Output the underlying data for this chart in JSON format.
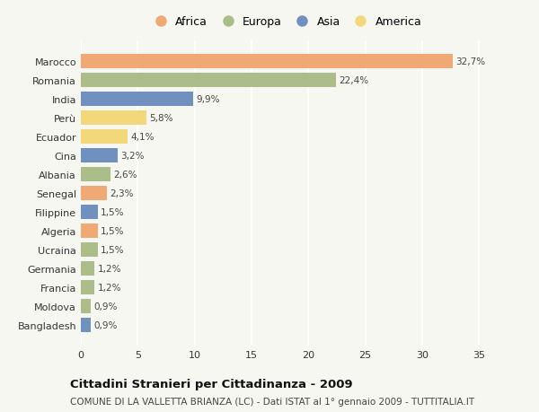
{
  "countries": [
    "Marocco",
    "Romania",
    "India",
    "Perù",
    "Ecuador",
    "Cina",
    "Albania",
    "Senegal",
    "Filippine",
    "Algeria",
    "Ucraina",
    "Germania",
    "Francia",
    "Moldova",
    "Bangladesh"
  ],
  "values": [
    32.7,
    22.4,
    9.9,
    5.8,
    4.1,
    3.2,
    2.6,
    2.3,
    1.5,
    1.5,
    1.5,
    1.2,
    1.2,
    0.9,
    0.9
  ],
  "labels": [
    "32,7%",
    "22,4%",
    "9,9%",
    "5,8%",
    "4,1%",
    "3,2%",
    "2,6%",
    "2,3%",
    "1,5%",
    "1,5%",
    "1,5%",
    "1,2%",
    "1,2%",
    "0,9%",
    "0,9%"
  ],
  "continents": [
    "Africa",
    "Europa",
    "Asia",
    "America",
    "America",
    "Asia",
    "Europa",
    "Africa",
    "Asia",
    "Africa",
    "Europa",
    "Europa",
    "Europa",
    "Europa",
    "Asia"
  ],
  "colors": {
    "Africa": "#F0A875",
    "Europa": "#ABBE8A",
    "Asia": "#7090C0",
    "America": "#F2D87A"
  },
  "legend_order": [
    "Africa",
    "Europa",
    "Asia",
    "America"
  ],
  "xlim": [
    0,
    36
  ],
  "xticks": [
    0,
    5,
    10,
    15,
    20,
    25,
    30,
    35
  ],
  "title": "Cittadini Stranieri per Cittadinanza - 2009",
  "subtitle": "COMUNE DI LA VALLETTA BRIANZA (LC) - Dati ISTAT al 1° gennaio 2009 - TUTTITALIA.IT",
  "background_color": "#f7f7f2",
  "bar_height": 0.75,
  "grid_color": "#ffffff",
  "label_fontsize": 7.5,
  "ytick_fontsize": 8.0,
  "xtick_fontsize": 8.0,
  "title_fontsize": 9.5,
  "subtitle_fontsize": 7.5
}
